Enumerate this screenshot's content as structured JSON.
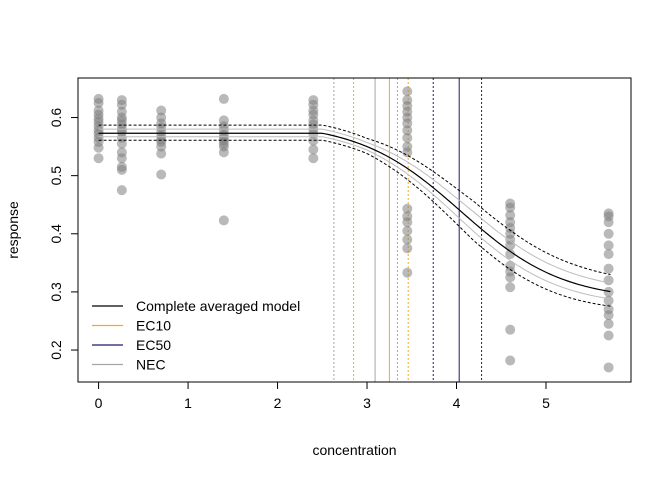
{
  "chart_data": {
    "type": "scatter",
    "title": "",
    "xlabel": "concentration",
    "ylabel": "response",
    "xlim": [
      -0.23,
      5.95
    ],
    "ylim": [
      0.145,
      0.668
    ],
    "x_ticks": [
      0,
      1,
      2,
      3,
      4,
      5
    ],
    "y_ticks": [
      0.2,
      0.3,
      0.4,
      0.5,
      0.6
    ],
    "grid": false,
    "legend_position": "bottom-left",
    "colors": {
      "points": "#808080",
      "model": "#000000",
      "ec10": "#f5a623",
      "ec50": "#1f1a6b",
      "nec": "#a6a6a6"
    },
    "points": [
      {
        "x": 0,
        "y": [
          0.632,
          0.625,
          0.612,
          0.605,
          0.598,
          0.592,
          0.585,
          0.578,
          0.572,
          0.565,
          0.558,
          0.548,
          0.53
        ]
      },
      {
        "x": 0.26,
        "y": [
          0.63,
          0.622,
          0.61,
          0.6,
          0.595,
          0.588,
          0.58,
          0.575,
          0.565,
          0.555,
          0.54,
          0.53,
          0.515,
          0.51,
          0.475
        ]
      },
      {
        "x": 0.7,
        "y": [
          0.612,
          0.6,
          0.59,
          0.583,
          0.575,
          0.568,
          0.562,
          0.558,
          0.55,
          0.538,
          0.502
        ]
      },
      {
        "x": 1.4,
        "y": [
          0.632,
          0.595,
          0.585,
          0.578,
          0.57,
          0.565,
          0.56,
          0.555,
          0.55,
          0.54,
          0.423
        ]
      },
      {
        "x": 2.4,
        "y": [
          0.63,
          0.622,
          0.612,
          0.605,
          0.595,
          0.588,
          0.58,
          0.572,
          0.56,
          0.545,
          0.53
        ]
      },
      {
        "x": 3.45,
        "y": [
          0.645,
          0.63,
          0.62,
          0.61,
          0.6,
          0.59,
          0.578,
          0.565,
          0.55,
          0.54,
          0.443,
          0.43,
          0.42,
          0.405,
          0.39,
          0.375,
          0.333
        ]
      },
      {
        "x": 4.6,
        "y": [
          0.452,
          0.445,
          0.432,
          0.42,
          0.41,
          0.4,
          0.39,
          0.38,
          0.365,
          0.345,
          0.335,
          0.325,
          0.308,
          0.235,
          0.182
        ]
      },
      {
        "x": 5.7,
        "y": [
          0.435,
          0.43,
          0.42,
          0.4,
          0.38,
          0.365,
          0.34,
          0.32,
          0.3,
          0.285,
          0.27,
          0.26,
          0.245,
          0.225,
          0.17
        ]
      }
    ],
    "model": {
      "top": 0.573,
      "bottom": 0.285,
      "ec50": 4.05,
      "slope": 0.57,
      "threshold": 2.5,
      "lower_ci_offset": -0.012,
      "upper_ci_offset": 0.014
    },
    "vlines": [
      {
        "name": "nec-lower",
        "x": 2.63,
        "kind": "nec",
        "dashed": true
      },
      {
        "name": "ec10-lower",
        "x": 2.85,
        "kind": "ec10",
        "dashed": true
      },
      {
        "name": "nec-center",
        "x": 3.09,
        "kind": "nec",
        "dashed": false
      },
      {
        "name": "ec10-center",
        "x": 3.25,
        "kind": "ec10",
        "dashed": false
      },
      {
        "name": "nec-upper",
        "x": 3.34,
        "kind": "nec",
        "dashed": true
      },
      {
        "name": "ec10-upper",
        "x": 3.46,
        "kind": "ec10",
        "dashed": true
      },
      {
        "name": "ec50-lower",
        "x": 3.74,
        "kind": "ec50",
        "dashed": true
      },
      {
        "name": "ec50-center",
        "x": 4.03,
        "kind": "ec50",
        "dashed": false
      },
      {
        "name": "ec50-upper",
        "x": 4.28,
        "kind": "ec50",
        "dashed": true
      }
    ],
    "legend": [
      {
        "label": "Complete averaged model",
        "kind": "model"
      },
      {
        "label": "EC10",
        "kind": "ec10"
      },
      {
        "label": "EC50",
        "kind": "ec50"
      },
      {
        "label": "NEC",
        "kind": "nec"
      }
    ]
  }
}
